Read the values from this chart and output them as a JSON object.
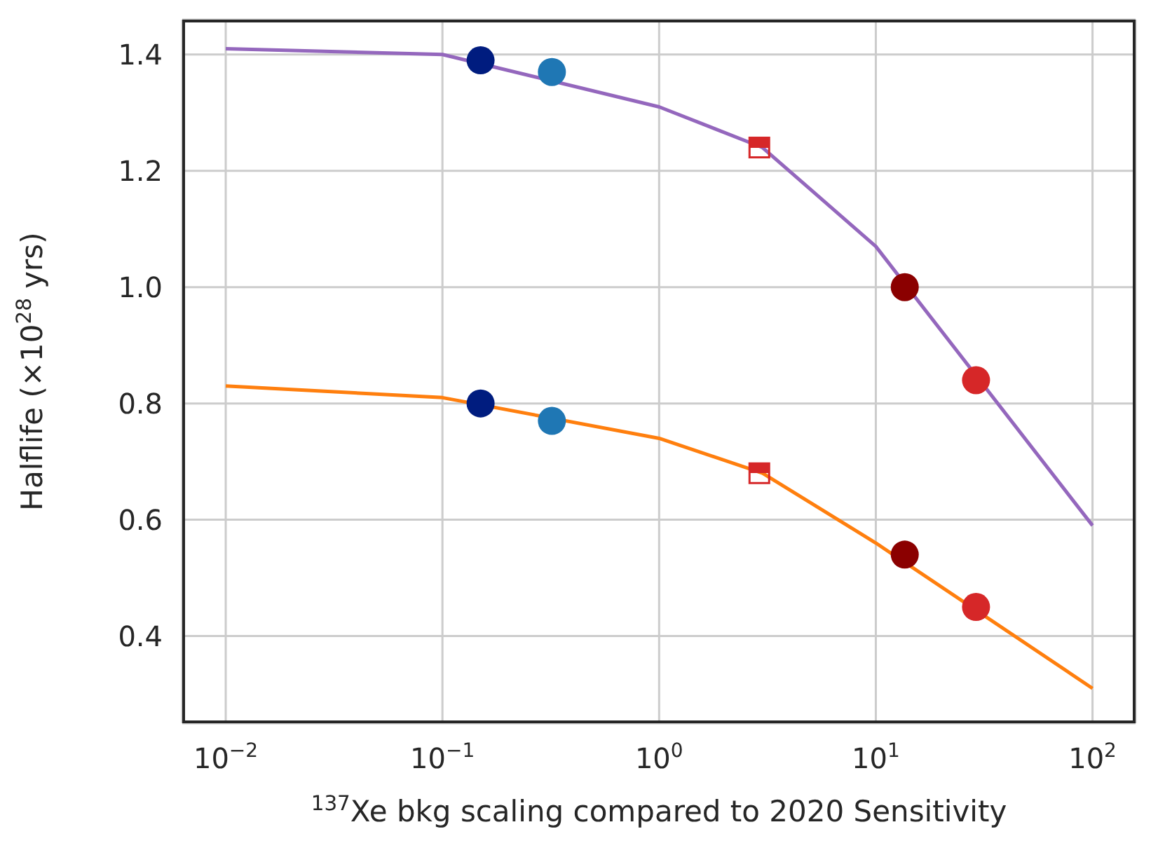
{
  "chart_data": {
    "type": "line",
    "xlabel": "$^{137}$Xe bkg scaling compared to 2020 Sensitivity",
    "ylabel": "Halflife (×10$^{28}$ yrs)",
    "log": "x",
    "grid": true,
    "legend": false,
    "marker": "none",
    "line_style": "solid",
    "xlim": [
      0.0063,
      158
    ],
    "ylim": [
      0.25,
      1.46
    ],
    "xticks": [
      {
        "value": 0.01,
        "label": "10$^{−2}$"
      },
      {
        "value": 0.1,
        "label": "10$^{−1}$"
      },
      {
        "value": 1,
        "label": "10$^{0}$"
      },
      {
        "value": 10,
        "label": "10$^{1}$"
      },
      {
        "value": 100,
        "label": "10$^{2}$"
      }
    ],
    "yticks": [
      {
        "value": 0.4,
        "label": "0.4"
      },
      {
        "value": 0.6,
        "label": "0.6"
      },
      {
        "value": 0.8,
        "label": "0.8"
      },
      {
        "value": 1.0,
        "label": "1.0"
      },
      {
        "value": 1.2,
        "label": "1.2"
      },
      {
        "value": 1.4,
        "label": "1.4"
      }
    ],
    "series": [
      {
        "type": "line",
        "color": "#9467bd",
        "x": [
          0.01,
          0.1,
          1,
          3,
          10,
          100
        ],
        "values": [
          1.41,
          1.4,
          1.31,
          1.24,
          1.07,
          0.59
        ]
      },
      {
        "type": "line",
        "color": "#ff7f0e",
        "x": [
          0.01,
          0.1,
          1,
          3,
          10,
          100
        ],
        "values": [
          0.83,
          0.81,
          0.74,
          0.68,
          0.56,
          0.31
        ]
      },
      {
        "type": "scatter",
        "marker": "circle",
        "color": "#001c7f",
        "x": [
          0.15,
          0.15
        ],
        "values": [
          1.39,
          0.8
        ]
      },
      {
        "type": "scatter",
        "marker": "circle",
        "color": "#1f77b4",
        "x": [
          0.32,
          0.32
        ],
        "values": [
          1.37,
          0.77
        ]
      },
      {
        "type": "scatter",
        "marker": "square",
        "color": "#d62728",
        "x": [
          2.9,
          2.9
        ],
        "values": [
          1.24,
          0.68
        ]
      },
      {
        "type": "scatter",
        "marker": "circle",
        "color": "#8b0000",
        "x": [
          13.6,
          13.6
        ],
        "values": [
          1.0,
          0.54
        ]
      },
      {
        "type": "scatter",
        "marker": "circle",
        "color": "#d62728",
        "x": [
          29,
          29
        ],
        "values": [
          0.84,
          0.45
        ]
      }
    ]
  }
}
